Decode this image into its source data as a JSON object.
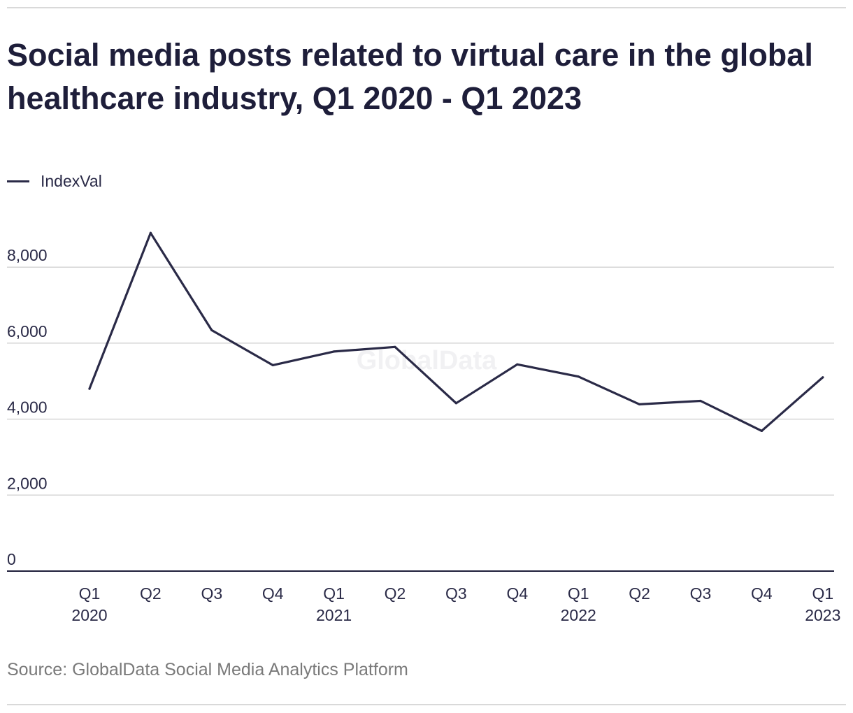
{
  "title": "Social media posts related to virtual care in the global healthcare industry, Q1 2020 - Q1 2023",
  "source": "Source: GlobalData Social Media Analytics Platform",
  "watermark": "GlobalData",
  "chart_data": {
    "type": "line",
    "categories": [
      "Q1 2020",
      "Q2 2020",
      "Q3 2020",
      "Q4 2020",
      "Q1 2021",
      "Q2 2021",
      "Q3 2021",
      "Q4 2021",
      "Q1 2022",
      "Q2 2022",
      "Q3 2022",
      "Q4 2022",
      "Q1 2023"
    ],
    "tick_labels": [
      [
        "Q1",
        "2020"
      ],
      [
        "Q2",
        ""
      ],
      [
        "Q3",
        ""
      ],
      [
        "Q4",
        ""
      ],
      [
        "Q1",
        "2021"
      ],
      [
        "Q2",
        ""
      ],
      [
        "Q3",
        ""
      ],
      [
        "Q4",
        ""
      ],
      [
        "Q1",
        "2022"
      ],
      [
        "Q2",
        ""
      ],
      [
        "Q3",
        ""
      ],
      [
        "Q4",
        ""
      ],
      [
        "Q1",
        "2023"
      ]
    ],
    "series": [
      {
        "name": "IndexVal",
        "color": "#2a2a47",
        "values": [
          4800,
          8900,
          6340,
          5420,
          5780,
          5900,
          4420,
          5440,
          5120,
          4390,
          4480,
          3690,
          5100
        ]
      }
    ],
    "y_ticks": [
      0,
      2000,
      4000,
      6000,
      8000
    ],
    "y_tick_labels": [
      "0",
      "2,000",
      "4,000",
      "6,000",
      "8,000"
    ],
    "ylim": [
      0,
      8700
    ],
    "grid": true,
    "legend_position": "top-left"
  }
}
